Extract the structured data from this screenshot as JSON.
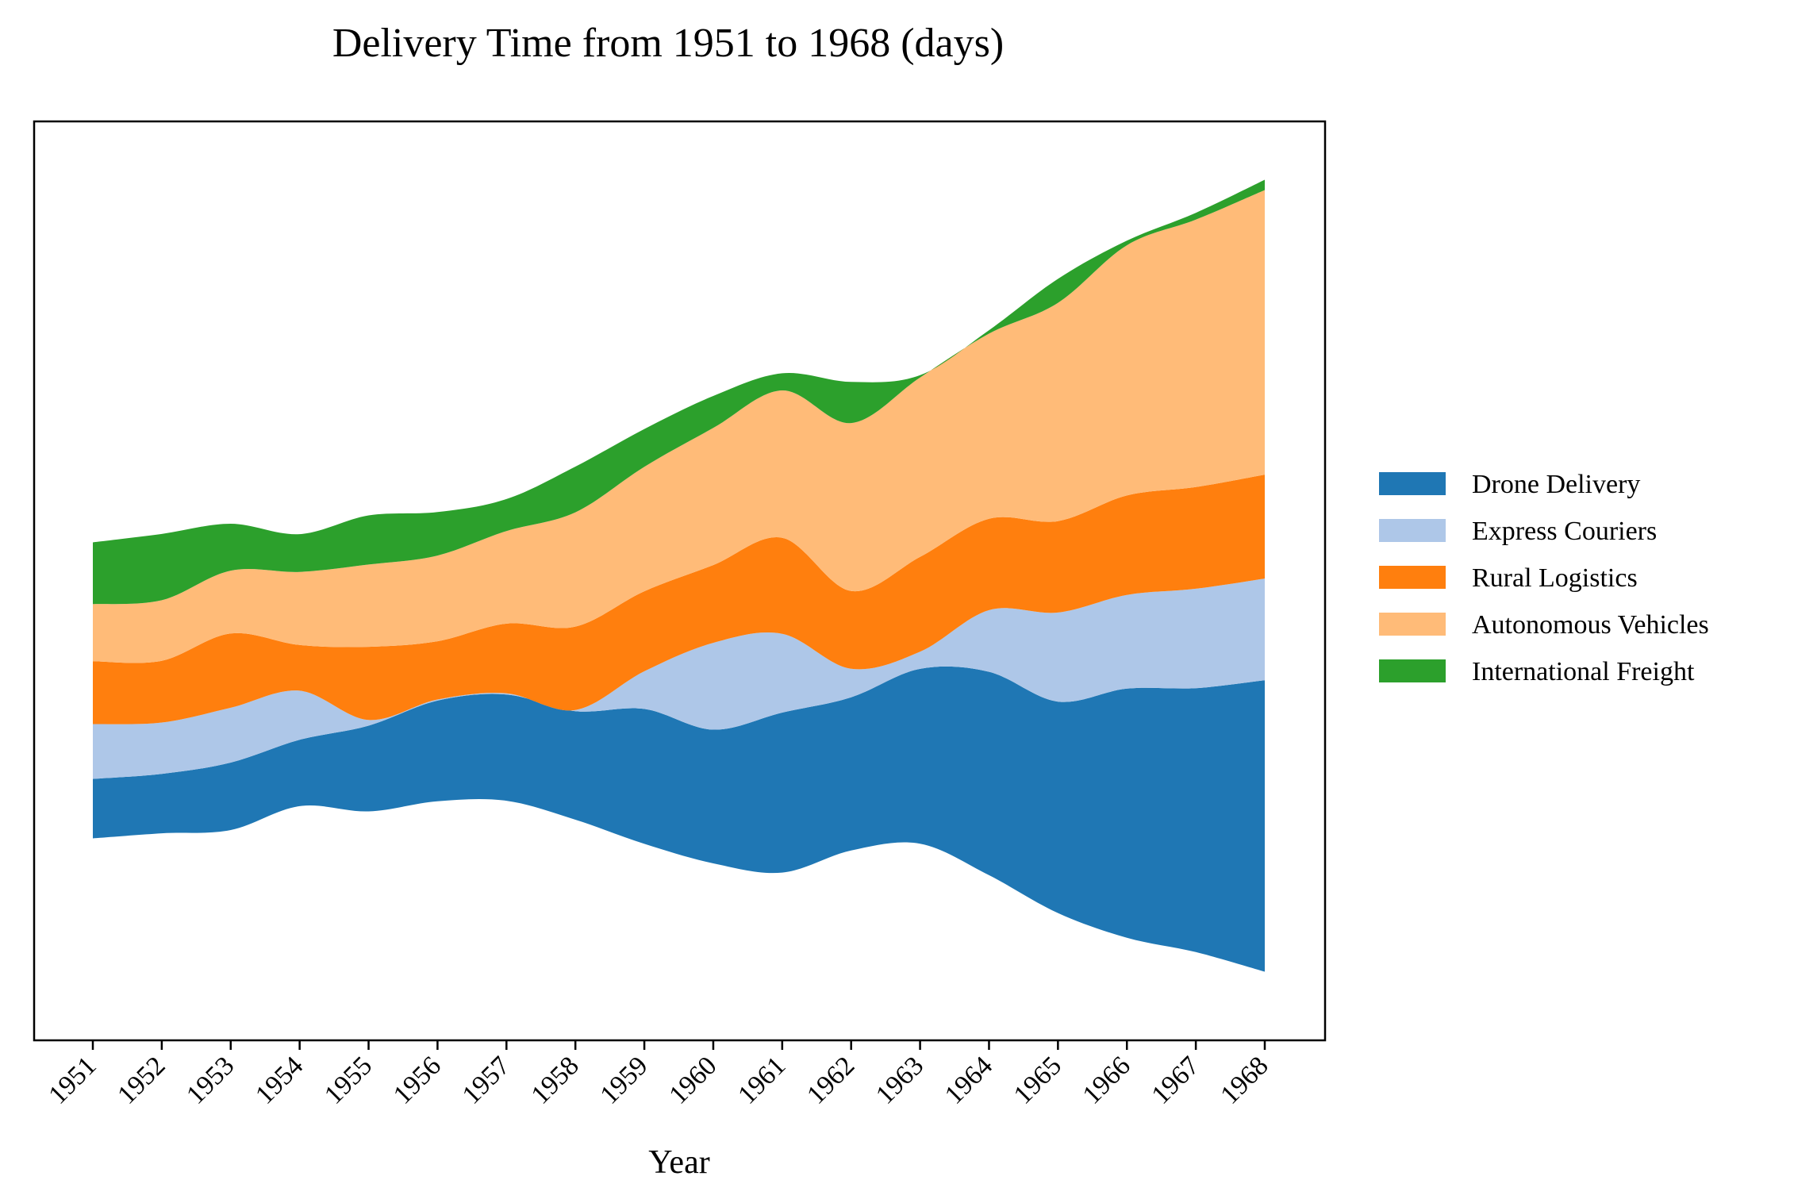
{
  "chart_data": {
    "type": "area",
    "variant": "streamgraph",
    "title": "Delivery Time from 1951 to 1968 (days)",
    "xlabel": "Year",
    "ylabel": "",
    "y_axis_visible": false,
    "grid": false,
    "legend_position": "right",
    "x": [
      "1951",
      "1952",
      "1953",
      "1954",
      "1955",
      "1956",
      "1957",
      "1958",
      "1959",
      "1960",
      "1961",
      "1962",
      "1963",
      "1964",
      "1965",
      "1966",
      "1967",
      "1968"
    ],
    "series": [
      {
        "name": "Drone Delivery",
        "color": "#1f77b4",
        "values": [
          5.2,
          5.2,
          5.9,
          5.8,
          7.5,
          8.8,
          9.3,
          9.5,
          11.8,
          11.7,
          14.0,
          13.4,
          15.3,
          17.8,
          18.5,
          21.8,
          23.1,
          25.5
        ]
      },
      {
        "name": "Express Couriers",
        "color": "#aec7e8",
        "values": [
          4.8,
          4.5,
          4.8,
          4.3,
          0.5,
          0.1,
          0.1,
          0.1,
          3.3,
          7.6,
          6.9,
          2.5,
          1.5,
          5.4,
          7.8,
          8.2,
          8.7,
          8.9
        ]
      },
      {
        "name": "Rural Logistics",
        "color": "#ff7f0e",
        "values": [
          5.5,
          5.4,
          6.5,
          4.0,
          6.4,
          5.1,
          6.1,
          7.3,
          7.0,
          6.8,
          8.4,
          6.8,
          8.3,
          8.0,
          8.0,
          8.7,
          8.9,
          9.1
        ]
      },
      {
        "name": "Autonomous Vehicles",
        "color": "#ffbb78",
        "values": [
          5.0,
          5.3,
          5.5,
          6.4,
          7.2,
          7.5,
          8.1,
          10.0,
          10.9,
          12.0,
          12.9,
          14.7,
          15.7,
          16.2,
          19.1,
          21.9,
          23.4,
          24.9
        ]
      },
      {
        "name": "International Freight",
        "color": "#2ca02c",
        "values": [
          5.4,
          5.8,
          4.1,
          3.3,
          4.3,
          3.8,
          2.8,
          4.0,
          3.3,
          2.8,
          1.5,
          3.6,
          0.2,
          0.3,
          2.1,
          0.4,
          0.6,
          0.9
        ]
      }
    ]
  }
}
